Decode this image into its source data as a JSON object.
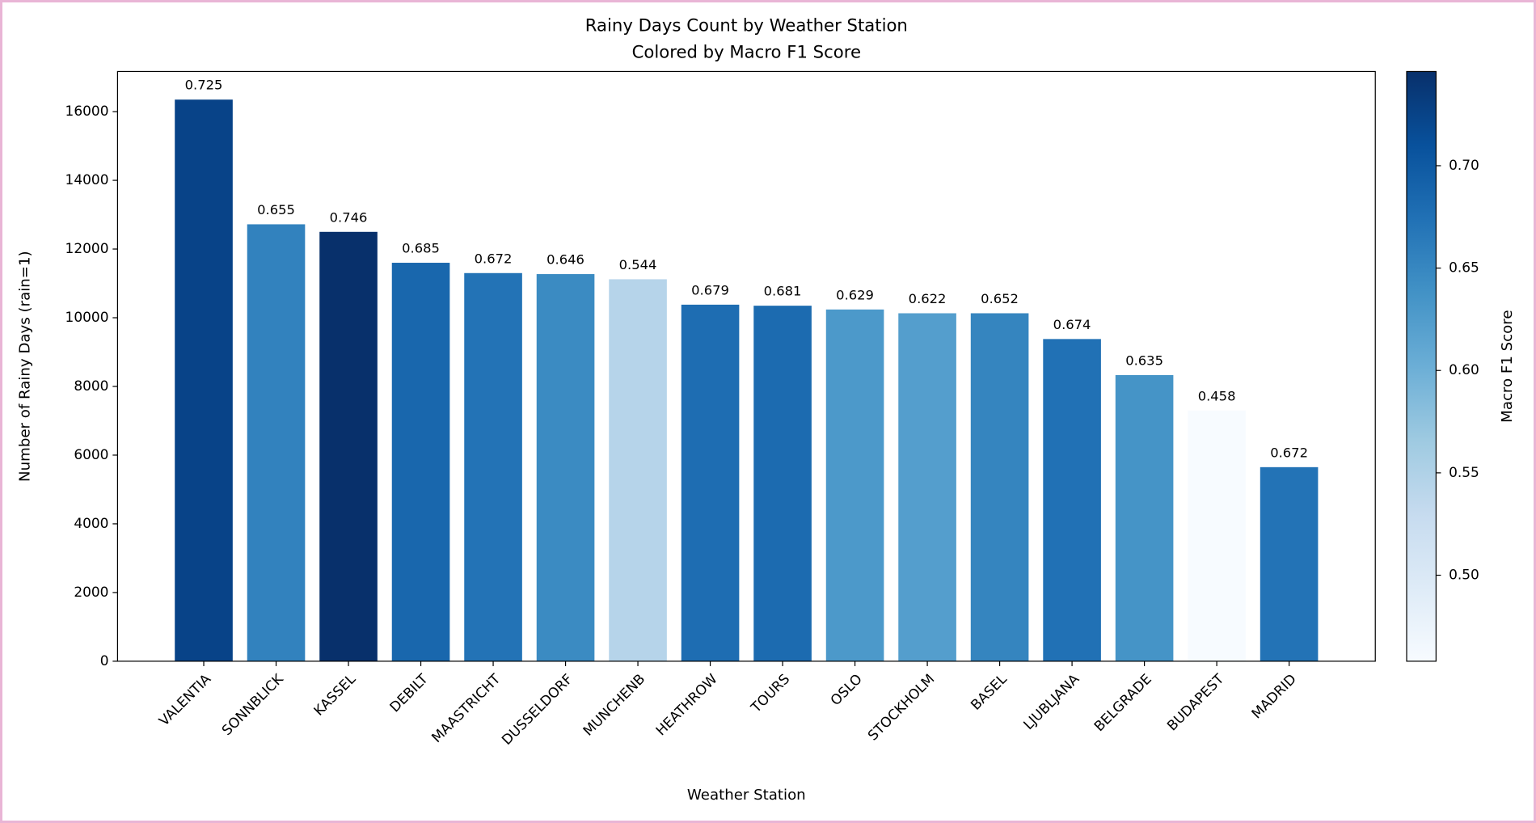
{
  "chart_data": {
    "type": "bar",
    "title": "Rainy Days Count by Weather Station",
    "subtitle": "Colored by Macro F1 Score",
    "x_label": "Weather Station",
    "y_label": "Number of Rainy Days (rain=1)",
    "colorbar_label": "Macro F1 Score",
    "categories": [
      "VALENTIA",
      "SONNBLICK",
      "KASSEL",
      "DEBILT",
      "MAASTRICHT",
      "DUSSELDORF",
      "MUNCHENB",
      "HEATHROW",
      "TOURS",
      "OSLO",
      "STOCKHOLM",
      "BASEL",
      "LJUBLJANA",
      "BELGRADE",
      "BUDAPEST",
      "MADRID"
    ],
    "values": [
      16350,
      12720,
      12500,
      11600,
      11300,
      11270,
      11120,
      10380,
      10350,
      10240,
      10130,
      10130,
      9380,
      8330,
      7300,
      5650
    ],
    "f1_scores": [
      0.725,
      0.655,
      0.746,
      0.685,
      0.672,
      0.646,
      0.544,
      0.679,
      0.681,
      0.629,
      0.622,
      0.652,
      0.674,
      0.635,
      0.458,
      0.672
    ],
    "ylim": [
      0,
      17168
    ],
    "yticks": [
      0,
      2000,
      4000,
      6000,
      8000,
      10000,
      12000,
      14000,
      16000
    ],
    "colorbar_lim": [
      0.458,
      0.746
    ],
    "colorbar_ticks": [
      {
        "value": 0.5,
        "label": "0.50"
      },
      {
        "value": 0.55,
        "label": "0.55"
      },
      {
        "value": 0.6,
        "label": "0.60"
      },
      {
        "value": 0.65,
        "label": "0.65"
      },
      {
        "value": 0.7,
        "label": "0.70"
      }
    ],
    "colormap": [
      "#f7fbff",
      "#deebf7",
      "#c6dbef",
      "#9ecae1",
      "#6baed6",
      "#4292c6",
      "#2171b5",
      "#08519c",
      "#08306b"
    ],
    "grid": false
  }
}
